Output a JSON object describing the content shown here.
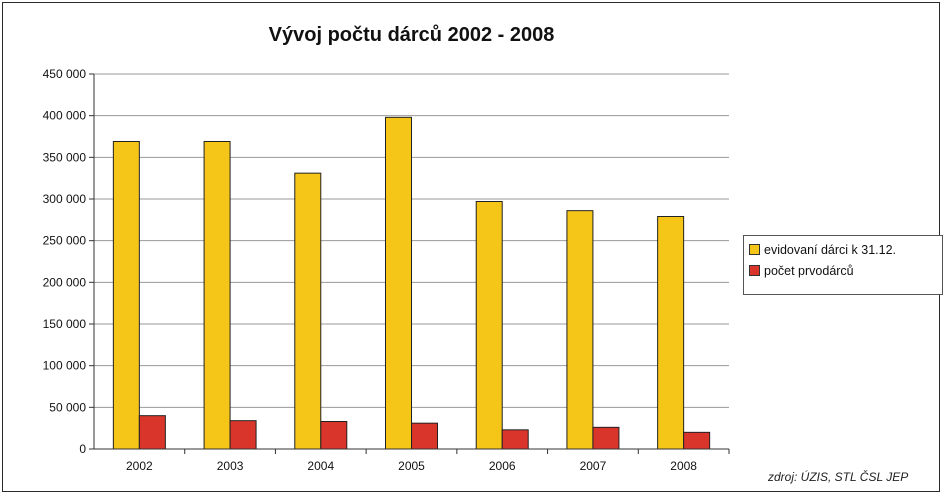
{
  "chart_data": {
    "type": "bar",
    "title": "Vývoj počtu dárců 2002 - 2008",
    "categories": [
      "2002",
      "2003",
      "2004",
      "2005",
      "2006",
      "2007",
      "2008"
    ],
    "series": [
      {
        "name": "evidovaní dárci k 31.12.",
        "color": "#f5c518",
        "values": [
          369000,
          369000,
          331000,
          398000,
          297000,
          286000,
          279000
        ]
      },
      {
        "name": "počet prvodárců",
        "color": "#d9352b",
        "values": [
          40000,
          34000,
          33000,
          31000,
          23000,
          26000,
          20000
        ]
      }
    ],
    "ylim": [
      0,
      450000
    ],
    "yticks": [
      "0",
      "50 000",
      "100 000",
      "150 000",
      "200 000",
      "250 000",
      "300 000",
      "350 000",
      "400 000",
      "450 000"
    ],
    "grid": true,
    "legend_position": "right",
    "xlabel": "",
    "ylabel": ""
  },
  "source_note": "zdroj: ÚZIS, STL ČSL JEP"
}
